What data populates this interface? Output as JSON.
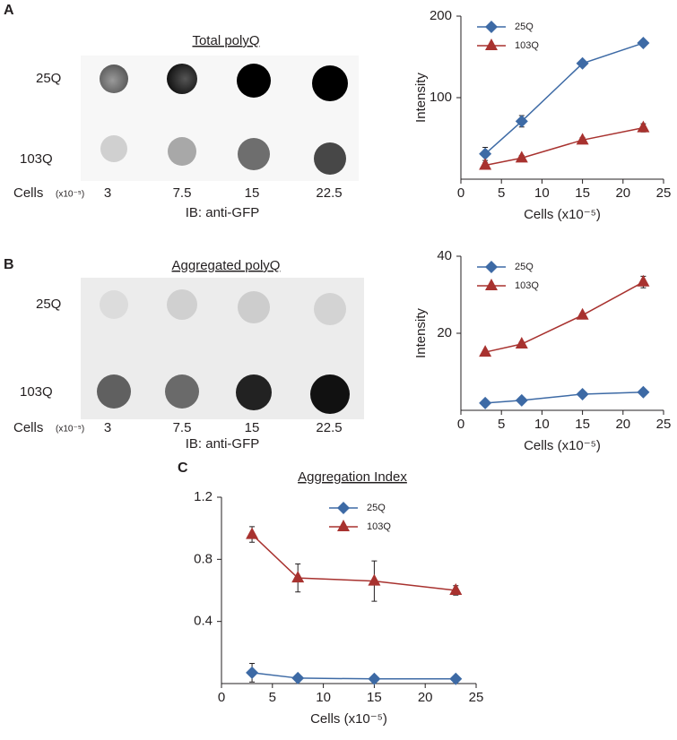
{
  "panel_labels": [
    "A",
    "B",
    "C"
  ],
  "blots": [
    {
      "title": "Total polyQ",
      "rows": [
        "25Q",
        "103Q"
      ],
      "cells_label": "Cells",
      "cells_unit": "(x10⁻⁵)",
      "lanes": [
        "3",
        "7.5",
        "15",
        "22.5"
      ],
      "antibody": "IB: anti-GFP"
    },
    {
      "title": "Aggregated polyQ",
      "rows": [
        "25Q",
        "103Q"
      ],
      "cells_label": "Cells",
      "cells_unit": "(x10⁻⁵)",
      "lanes": [
        "3",
        "7.5",
        "15",
        "22.5"
      ],
      "antibody": "IB: anti-GFP"
    }
  ],
  "chart_data": [
    {
      "type": "line",
      "xlabel": "Cells (x10⁻⁵)",
      "ylabel": "Intensity",
      "x": [
        3,
        7.5,
        15,
        22.5
      ],
      "xlim": [
        0,
        25
      ],
      "xticks": [
        0,
        5,
        10,
        15,
        20,
        25
      ],
      "ylim": [
        0,
        200
      ],
      "yticks": [
        100,
        200
      ],
      "legend": "upper left",
      "series": [
        {
          "name": "25Q",
          "color": "#3d6aa5",
          "marker": "diamond",
          "values": [
            31,
            71,
            142,
            167
          ],
          "errors": [
            8,
            7,
            2,
            2
          ]
        },
        {
          "name": "103Q",
          "color": "#a8322f",
          "marker": "triangle",
          "values": [
            17,
            26,
            48,
            63
          ],
          "errors": [
            3,
            3,
            3,
            5
          ]
        }
      ]
    },
    {
      "type": "line",
      "xlabel": "Cells (x10⁻⁵)",
      "ylabel": "Intensity",
      "x": [
        3,
        7.5,
        15,
        22.5
      ],
      "xlim": [
        0,
        25
      ],
      "xticks": [
        0,
        5,
        10,
        15,
        20,
        25
      ],
      "ylim": [
        0,
        40
      ],
      "yticks": [
        20,
        40
      ],
      "legend": "upper left",
      "series": [
        {
          "name": "25Q",
          "color": "#3d6aa5",
          "marker": "diamond",
          "values": [
            1.9,
            2.6,
            4.2,
            4.7
          ],
          "errors": [
            0.3,
            0.3,
            0.6,
            0.5
          ]
        },
        {
          "name": "103Q",
          "color": "#a8322f",
          "marker": "triangle",
          "values": [
            15.1,
            17.2,
            24.7,
            33.3
          ],
          "errors": [
            0.4,
            0.5,
            0.5,
            1.5
          ]
        }
      ]
    },
    {
      "type": "line",
      "title": "Aggregation Index",
      "xlabel": "Cells (x10⁻⁵)",
      "x": [
        3,
        7.5,
        15,
        23
      ],
      "xlim": [
        0,
        25
      ],
      "xticks": [
        0,
        5,
        10,
        15,
        20,
        25
      ],
      "ylim": [
        0,
        1.2
      ],
      "yticks": [
        0.4,
        0.8,
        1.2
      ],
      "legend": "upper center",
      "series": [
        {
          "name": "25Q",
          "color": "#3d6aa5",
          "marker": "diamond",
          "values": [
            0.07,
            0.035,
            0.03,
            0.03
          ],
          "errors": [
            0.06,
            0.01,
            0.01,
            0.01
          ]
        },
        {
          "name": "103Q",
          "color": "#a8322f",
          "marker": "triangle",
          "values": [
            0.96,
            0.68,
            0.66,
            0.6
          ],
          "errors": [
            0.05,
            0.09,
            0.13,
            0.03
          ]
        }
      ]
    }
  ]
}
